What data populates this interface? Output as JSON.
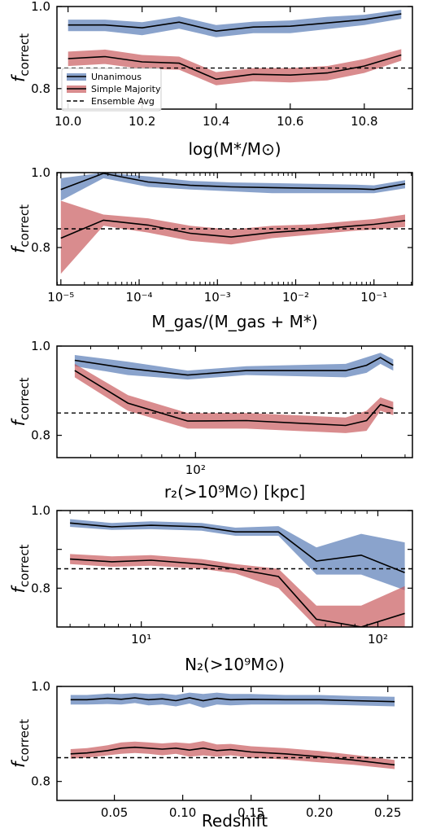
{
  "colors": {
    "blue": "#4c72b0",
    "red": "#c44e52",
    "line": "#000000",
    "frame": "#000000"
  },
  "legend": {
    "entries": [
      {
        "label": "Unanimous",
        "color": "#4c72b0",
        "kind": "patch"
      },
      {
        "label": "Simple Majority",
        "color": "#c44e52",
        "kind": "patch"
      },
      {
        "label": "Ensemble Avg",
        "color": "#000000",
        "kind": "dashed"
      }
    ]
  },
  "chart_data": [
    {
      "type": "area",
      "ylabel_main": "f",
      "ylabel_sub": "correct",
      "xlabel": "log(M*/M⊙)",
      "xscale": "linear",
      "xlim": [
        9.97,
        10.93
      ],
      "ylim": [
        0.75,
        1.0
      ],
      "xticks": [
        10.0,
        10.2,
        10.4,
        10.6,
        10.8
      ],
      "xticklabels": [
        "10.0",
        "10.2",
        "10.4",
        "10.6",
        "10.8"
      ],
      "yticks": [
        0.8,
        1.0
      ],
      "yticklabels": [
        "0.8",
        "1.0"
      ],
      "ensemble_avg": 0.85,
      "legend_location": "lower-left",
      "x": [
        10.0,
        10.1,
        10.2,
        10.3,
        10.4,
        10.5,
        10.6,
        10.7,
        10.8,
        10.9
      ],
      "series": [
        {
          "name": "Unanimous",
          "y": [
            0.955,
            0.955,
            0.948,
            0.962,
            0.94,
            0.95,
            0.952,
            0.96,
            0.968,
            0.982
          ],
          "lower": [
            0.94,
            0.94,
            0.93,
            0.946,
            0.925,
            0.935,
            0.935,
            0.945,
            0.955,
            0.97
          ],
          "upper": [
            0.968,
            0.968,
            0.962,
            0.976,
            0.955,
            0.963,
            0.966,
            0.975,
            0.98,
            0.992
          ]
        },
        {
          "name": "Simple Majority",
          "y": [
            0.873,
            0.878,
            0.865,
            0.862,
            0.823,
            0.835,
            0.833,
            0.838,
            0.855,
            0.882
          ],
          "lower": [
            0.855,
            0.86,
            0.848,
            0.846,
            0.808,
            0.818,
            0.815,
            0.82,
            0.838,
            0.868
          ],
          "upper": [
            0.89,
            0.895,
            0.882,
            0.878,
            0.84,
            0.85,
            0.85,
            0.855,
            0.872,
            0.896
          ]
        }
      ]
    },
    {
      "type": "area",
      "ylabel_main": "f",
      "ylabel_sub": "correct",
      "xlabel": "M_gas/(M_gas + M*)",
      "xscale": "log",
      "xlim": [
        8.91e-06,
        0.31
      ],
      "ylim": [
        0.7,
        1.0
      ],
      "xticks": [
        1e-05,
        0.0001,
        0.001,
        0.01,
        0.1
      ],
      "xticklabels": [
        "10⁻⁵",
        "10⁻⁴",
        "10⁻³",
        "10⁻²",
        "10⁻¹"
      ],
      "yticks": [
        0.8,
        1.0
      ],
      "yticklabels": [
        "0.8",
        "1.0"
      ],
      "ensemble_avg": 0.85,
      "legend_location": "",
      "x": [
        1e-05,
        3.5e-05,
        0.00013,
        0.00045,
        0.0015,
        0.005,
        0.017,
        0.058,
        0.1,
        0.25
      ],
      "series": [
        {
          "name": "Unanimous",
          "y": [
            0.955,
            0.998,
            0.975,
            0.966,
            0.962,
            0.96,
            0.958,
            0.957,
            0.955,
            0.97
          ],
          "lower": [
            0.925,
            0.985,
            0.962,
            0.955,
            0.95,
            0.945,
            0.945,
            0.945,
            0.945,
            0.958
          ],
          "upper": [
            0.985,
            1.0,
            0.99,
            0.978,
            0.974,
            0.972,
            0.97,
            0.968,
            0.966,
            0.98
          ]
        },
        {
          "name": "Simple Majority",
          "y": [
            0.825,
            0.873,
            0.86,
            0.838,
            0.828,
            0.84,
            0.848,
            0.858,
            0.862,
            0.872
          ],
          "lower": [
            0.73,
            0.858,
            0.84,
            0.818,
            0.808,
            0.825,
            0.835,
            0.845,
            0.848,
            0.855
          ],
          "upper": [
            0.925,
            0.888,
            0.878,
            0.858,
            0.848,
            0.858,
            0.862,
            0.872,
            0.876,
            0.888
          ]
        }
      ]
    },
    {
      "type": "area",
      "ylabel_main": "f",
      "ylabel_sub": "correct",
      "xlabel": "r₂(>10⁹M⊙) [kpc]",
      "xscale": "log",
      "xlim": [
        40,
        420
      ],
      "ylim": [
        0.75,
        1.0
      ],
      "xticks": [
        100
      ],
      "xticklabels": [
        "10²"
      ],
      "yticks": [
        0.8,
        1.0
      ],
      "yticklabels": [
        "0.8",
        "1.0"
      ],
      "ensemble_avg": 0.85,
      "legend_location": "",
      "x": [
        45,
        64,
        95,
        140,
        270,
        310,
        340,
        370
      ],
      "series": [
        {
          "name": "Unanimous",
          "y": [
            0.968,
            0.95,
            0.935,
            0.945,
            0.945,
            0.957,
            0.974,
            0.957
          ],
          "lower": [
            0.955,
            0.935,
            0.925,
            0.935,
            0.93,
            0.94,
            0.96,
            0.945
          ],
          "upper": [
            0.98,
            0.965,
            0.945,
            0.955,
            0.96,
            0.975,
            0.985,
            0.97
          ]
        },
        {
          "name": "Simple Majority",
          "y": [
            0.945,
            0.872,
            0.832,
            0.833,
            0.822,
            0.833,
            0.869,
            0.86
          ],
          "lower": [
            0.93,
            0.855,
            0.815,
            0.815,
            0.805,
            0.81,
            0.855,
            0.845
          ],
          "upper": [
            0.96,
            0.89,
            0.85,
            0.85,
            0.84,
            0.855,
            0.885,
            0.875
          ]
        }
      ]
    },
    {
      "type": "area",
      "ylabel_main": "f",
      "ylabel_sub": "correct",
      "xlabel": "N₂(>10⁹M⊙)",
      "xscale": "log",
      "xlim": [
        4.4,
        140
      ],
      "ylim": [
        0.7,
        1.0
      ],
      "xticks": [
        10,
        100
      ],
      "xticklabels": [
        "10¹",
        "10²"
      ],
      "yticks": [
        0.8,
        0.9,
        1.0
      ],
      "yticklabels": [
        "0.8",
        "",
        "1.0"
      ],
      "ensemble_avg": 0.85,
      "legend_location": "",
      "x": [
        5,
        7.5,
        11,
        18,
        25,
        38,
        55,
        85,
        130
      ],
      "series": [
        {
          "name": "Unanimous",
          "y": [
            0.968,
            0.958,
            0.962,
            0.958,
            0.945,
            0.945,
            0.87,
            0.885,
            0.84
          ],
          "lower": [
            0.958,
            0.95,
            0.952,
            0.948,
            0.935,
            0.935,
            0.835,
            0.835,
            0.795
          ],
          "upper": [
            0.978,
            0.968,
            0.972,
            0.968,
            0.956,
            0.96,
            0.905,
            0.94,
            0.918
          ]
        },
        {
          "name": "Simple Majority",
          "y": [
            0.875,
            0.868,
            0.872,
            0.862,
            0.85,
            0.83,
            0.72,
            0.7,
            0.735
          ],
          "lower": [
            0.862,
            0.855,
            0.858,
            0.85,
            0.838,
            0.8,
            0.7,
            0.7,
            0.7
          ],
          "upper": [
            0.888,
            0.882,
            0.885,
            0.875,
            0.862,
            0.85,
            0.755,
            0.755,
            0.805
          ]
        }
      ]
    },
    {
      "type": "area",
      "ylabel_main": "f",
      "ylabel_sub": "correct",
      "xlabel": "Redshift",
      "xscale": "linear",
      "xlim": [
        0.008,
        0.268
      ],
      "ylim": [
        0.76,
        1.0
      ],
      "xticks": [
        0.05,
        0.1,
        0.15,
        0.2,
        0.25
      ],
      "xticklabels": [
        "0.05",
        "0.10",
        "0.15",
        "0.20",
        "0.25"
      ],
      "yticks": [
        0.8,
        1.0
      ],
      "yticklabels": [
        "0.8",
        "1.0"
      ],
      "ensemble_avg": 0.85,
      "legend_location": "",
      "x": [
        0.018,
        0.03,
        0.045,
        0.055,
        0.065,
        0.075,
        0.085,
        0.095,
        0.105,
        0.115,
        0.125,
        0.135,
        0.15,
        0.175,
        0.2,
        0.225,
        0.255
      ],
      "series": [
        {
          "name": "Unanimous",
          "y": [
            0.972,
            0.972,
            0.975,
            0.973,
            0.976,
            0.972,
            0.974,
            0.97,
            0.976,
            0.97,
            0.975,
            0.972,
            0.973,
            0.972,
            0.972,
            0.97,
            0.968
          ],
          "lower": [
            0.962,
            0.962,
            0.963,
            0.962,
            0.965,
            0.96,
            0.962,
            0.958,
            0.964,
            0.955,
            0.962,
            0.96,
            0.962,
            0.962,
            0.962,
            0.96,
            0.958
          ],
          "upper": [
            0.982,
            0.982,
            0.985,
            0.984,
            0.986,
            0.984,
            0.985,
            0.982,
            0.987,
            0.984,
            0.987,
            0.984,
            0.984,
            0.982,
            0.982,
            0.98,
            0.978
          ]
        },
        {
          "name": "Simple Majority",
          "y": [
            0.858,
            0.86,
            0.865,
            0.87,
            0.872,
            0.87,
            0.868,
            0.87,
            0.866,
            0.87,
            0.865,
            0.867,
            0.862,
            0.858,
            0.852,
            0.845,
            0.835
          ],
          "lower": [
            0.848,
            0.85,
            0.855,
            0.858,
            0.86,
            0.858,
            0.855,
            0.858,
            0.852,
            0.855,
            0.852,
            0.855,
            0.85,
            0.846,
            0.84,
            0.835,
            0.826
          ],
          "upper": [
            0.868,
            0.87,
            0.876,
            0.882,
            0.884,
            0.882,
            0.88,
            0.882,
            0.88,
            0.885,
            0.878,
            0.879,
            0.874,
            0.87,
            0.864,
            0.856,
            0.845
          ]
        }
      ]
    }
  ]
}
